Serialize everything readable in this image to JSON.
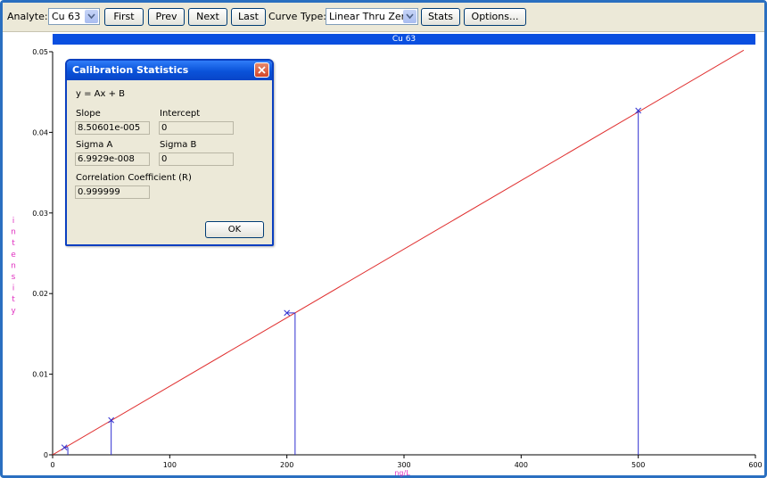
{
  "toolbar": {
    "analyte_label": "Analyte:",
    "analyte_value": "Cu 63",
    "first_label": "First",
    "prev_label": "Prev",
    "next_label": "Next",
    "last_label": "Last",
    "curve_type_label": "Curve Type:",
    "curve_type_value": "Linear Thru Zero",
    "stats_label": "Stats",
    "options_label": "Options..."
  },
  "plot": {
    "title": "Cu 63",
    "xlabel": "ng/L",
    "ylabel": "Intensity"
  },
  "colors": {
    "fit_line": "#e03030",
    "standards": "#3030d0",
    "axis_label": "#e030c0",
    "title_bar": "#0a4fe0"
  },
  "chart_data": {
    "type": "scatter",
    "title": "Cu 63",
    "xlabel": "ng/L",
    "ylabel": "Intensity",
    "xlim": [
      0,
      600
    ],
    "ylim": [
      0,
      0.05
    ],
    "xticks": [
      0,
      100,
      200,
      300,
      400,
      500,
      600
    ],
    "yticks": [
      0,
      0.01,
      0.02,
      0.03,
      0.04,
      0.05
    ],
    "xtick_labels": [
      "0",
      "100",
      "200",
      "300",
      "400",
      "500",
      "600"
    ],
    "ytick_labels": [
      "0",
      "0.01",
      "0.02",
      "0.03",
      "0.04",
      "0.05"
    ],
    "fit_line": {
      "slope": 8.50601e-05,
      "intercept": 0,
      "x_range": [
        0,
        590
      ]
    },
    "standards": [
      {
        "x": 10,
        "y": 0.00092,
        "bar_x": 13
      },
      {
        "x": 50,
        "y": 0.0043,
        "bar_x": 50
      },
      {
        "x": 200,
        "y": 0.0176,
        "bar_x": 207
      },
      {
        "x": 500,
        "y": 0.0427,
        "bar_x": 500
      }
    ]
  },
  "dialog": {
    "title": "Calibration Statistics",
    "equation": "y = Ax + B",
    "slope_label": "Slope",
    "slope_value": "8.50601e-005",
    "intercept_label": "Intercept",
    "intercept_value": "0",
    "sigma_a_label": "Sigma A",
    "sigma_a_value": "6.9929e-008",
    "sigma_b_label": "Sigma B",
    "sigma_b_value": "0",
    "corr_label": "Correlation Coefficient (R)",
    "corr_value": "0.999999",
    "ok_label": "OK"
  }
}
